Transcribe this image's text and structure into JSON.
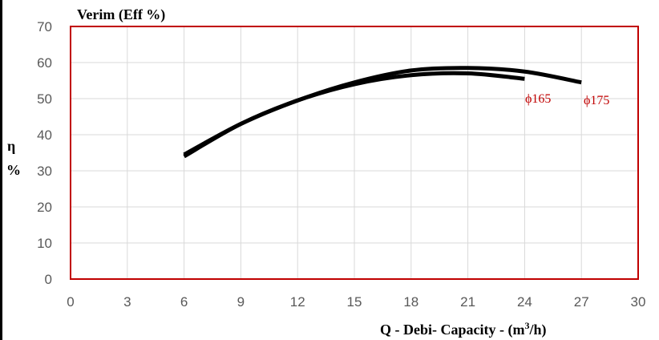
{
  "chart_data": {
    "type": "line",
    "title": "Verim (Eff %)",
    "ylabel_line1": "η",
    "ylabel_line2": "%",
    "xlabel_prefix": "Q - Debi- Capacity - (m",
    "xlabel_sup": "3",
    "xlabel_suffix": "/h)",
    "xlim": [
      0,
      30
    ],
    "ylim": [
      0,
      70
    ],
    "xticks": [
      0,
      3,
      6,
      9,
      12,
      15,
      18,
      21,
      24,
      27,
      30
    ],
    "yticks": [
      0,
      10,
      20,
      30,
      40,
      50,
      60,
      70
    ],
    "grid": true,
    "colors": {
      "plot_border": "#c00000",
      "grid": "#d9d9d9",
      "line": "#000000",
      "label": "#c00000"
    },
    "series": [
      {
        "name": "ϕ165",
        "x": [
          6,
          9,
          12,
          15,
          18,
          21,
          24
        ],
        "y": [
          34,
          43,
          49.5,
          54,
          56.5,
          57,
          55.5
        ]
      },
      {
        "name": "ϕ175",
        "x": [
          6,
          9,
          12,
          15,
          18,
          21,
          24,
          27
        ],
        "y": [
          34.5,
          43,
          49.5,
          54.5,
          57.8,
          58.5,
          57.5,
          54.5
        ]
      }
    ]
  }
}
